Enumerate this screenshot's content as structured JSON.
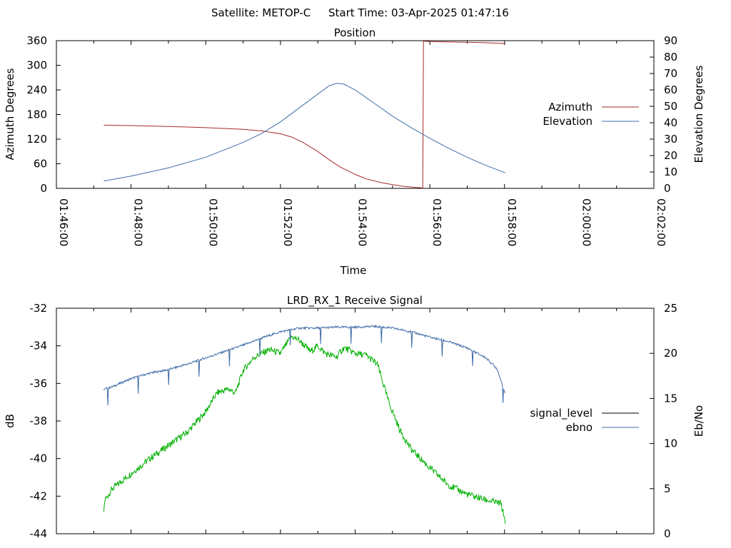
{
  "header": {
    "satellite": "Satellite: METOP-C",
    "start_time": "Start Time: 03-Apr-2025 01:47:16"
  },
  "colors": {
    "azimuth": "#a52a2a",
    "elevation": "#3f6ca8",
    "signal_level": "#00b000",
    "ebno": "#3f6ca8"
  },
  "chart_data": [
    {
      "type": "line",
      "title": "Position",
      "xlabel": "Time",
      "ylabel": "Azimuth Degrees",
      "y2label": "Elevation Degrees",
      "x_ticks": [
        "01:46:00",
        "01:48:00",
        "01:50:00",
        "01:52:00",
        "01:54:00",
        "01:56:00",
        "01:58:00",
        "02:00:00",
        "02:02:00"
      ],
      "xlim_minutes": [
        0,
        16
      ],
      "y_ticks": [
        "0",
        "60",
        "120",
        "180",
        "240",
        "300",
        "360"
      ],
      "ylim": [
        0,
        360
      ],
      "y2_ticks": [
        "0",
        "10",
        "20",
        "30",
        "40",
        "50",
        "60",
        "70",
        "80",
        "90"
      ],
      "y2lim": [
        0,
        90
      ],
      "legend": {
        "placement": "right",
        "entries": [
          "Azimuth",
          "Elevation"
        ]
      },
      "series": [
        {
          "name": "Azimuth",
          "axis": "y",
          "x": [
            1.27,
            2.0,
            3.0,
            4.0,
            5.0,
            5.5,
            6.0,
            6.3,
            6.6,
            7.0,
            7.3,
            7.6,
            8.0,
            8.3,
            8.7,
            9.0,
            9.3,
            9.6,
            9.81,
            9.83,
            10.0,
            10.5,
            11.0,
            11.5,
            12.0,
            12.02
          ],
          "y": [
            154,
            153,
            151,
            148,
            144,
            140,
            133,
            125,
            112,
            90,
            70,
            52,
            34,
            23,
            14,
            9,
            5,
            2.5,
            1,
            359,
            358,
            357,
            356,
            355,
            353,
            352
          ]
        },
        {
          "name": "Elevation",
          "axis": "y2",
          "x": [
            1.27,
            2.0,
            3.0,
            4.0,
            5.0,
            5.5,
            6.0,
            6.5,
            7.0,
            7.3,
            7.5,
            7.7,
            8.0,
            8.5,
            9.0,
            9.5,
            10.0,
            10.5,
            11.0,
            11.5,
            12.02
          ],
          "y": [
            4.5,
            7.5,
            12.5,
            19,
            28,
            33.5,
            40.5,
            49,
            57.5,
            62.5,
            64,
            63.5,
            60,
            52,
            44,
            37,
            30.5,
            24.5,
            19,
            14,
            9.5
          ]
        }
      ]
    },
    {
      "type": "line",
      "title": "LRD_RX_1 Receive Signal",
      "xlabel": "",
      "ylabel": "dB",
      "y2label": "Eb/No",
      "xlim_minutes": [
        0,
        16
      ],
      "y_ticks": [
        "-44",
        "-42",
        "-40",
        "-38",
        "-36",
        "-34",
        "-32"
      ],
      "ylim": [
        -44,
        -32
      ],
      "y2_ticks": [
        "0",
        "5",
        "10",
        "15",
        "20",
        "25"
      ],
      "y2lim": [
        0,
        25
      ],
      "legend": {
        "placement": "right",
        "entries": [
          "signal_level",
          "ebno"
        ]
      },
      "series": [
        {
          "name": "signal_level",
          "axis": "y",
          "x": [
            1.27,
            1.3,
            1.5,
            2.0,
            2.5,
            3.0,
            3.5,
            4.0,
            4.3,
            4.6,
            4.8,
            5.0,
            5.3,
            5.7,
            6.0,
            6.3,
            6.5,
            6.8,
            7.0,
            7.2,
            7.5,
            7.7,
            8.0,
            8.3,
            8.6,
            8.9,
            9.2,
            9.5,
            10.0,
            10.5,
            11.0,
            11.5,
            11.9,
            12.02
          ],
          "y": [
            -42.8,
            -42.2,
            -41.6,
            -40.8,
            -40.0,
            -39.3,
            -38.6,
            -37.5,
            -36.5,
            -36.3,
            -36.5,
            -35.3,
            -34.6,
            -34.2,
            -34.4,
            -33.5,
            -33.7,
            -34.3,
            -34.0,
            -34.4,
            -34.6,
            -34.1,
            -34.4,
            -34.5,
            -35.0,
            -37.0,
            -38.5,
            -39.5,
            -40.5,
            -41.4,
            -41.9,
            -42.2,
            -42.4,
            -43.3
          ]
        },
        {
          "name": "ebno",
          "axis": "y2",
          "x": [
            1.27,
            1.5,
            2.0,
            2.5,
            3.0,
            3.5,
            4.0,
            4.5,
            5.0,
            5.5,
            6.0,
            6.5,
            7.0,
            7.5,
            8.0,
            8.5,
            9.0,
            9.5,
            10.0,
            10.5,
            11.0,
            11.5,
            11.8,
            12.0,
            12.02
          ],
          "y": [
            16.0,
            16.3,
            17.2,
            17.8,
            18.2,
            18.8,
            19.5,
            20.2,
            20.9,
            21.7,
            22.4,
            22.8,
            22.8,
            22.9,
            22.9,
            23.0,
            22.8,
            22.4,
            21.8,
            21.3,
            20.6,
            19.5,
            18.3,
            15.8,
            15.5
          ]
        }
      ]
    }
  ]
}
